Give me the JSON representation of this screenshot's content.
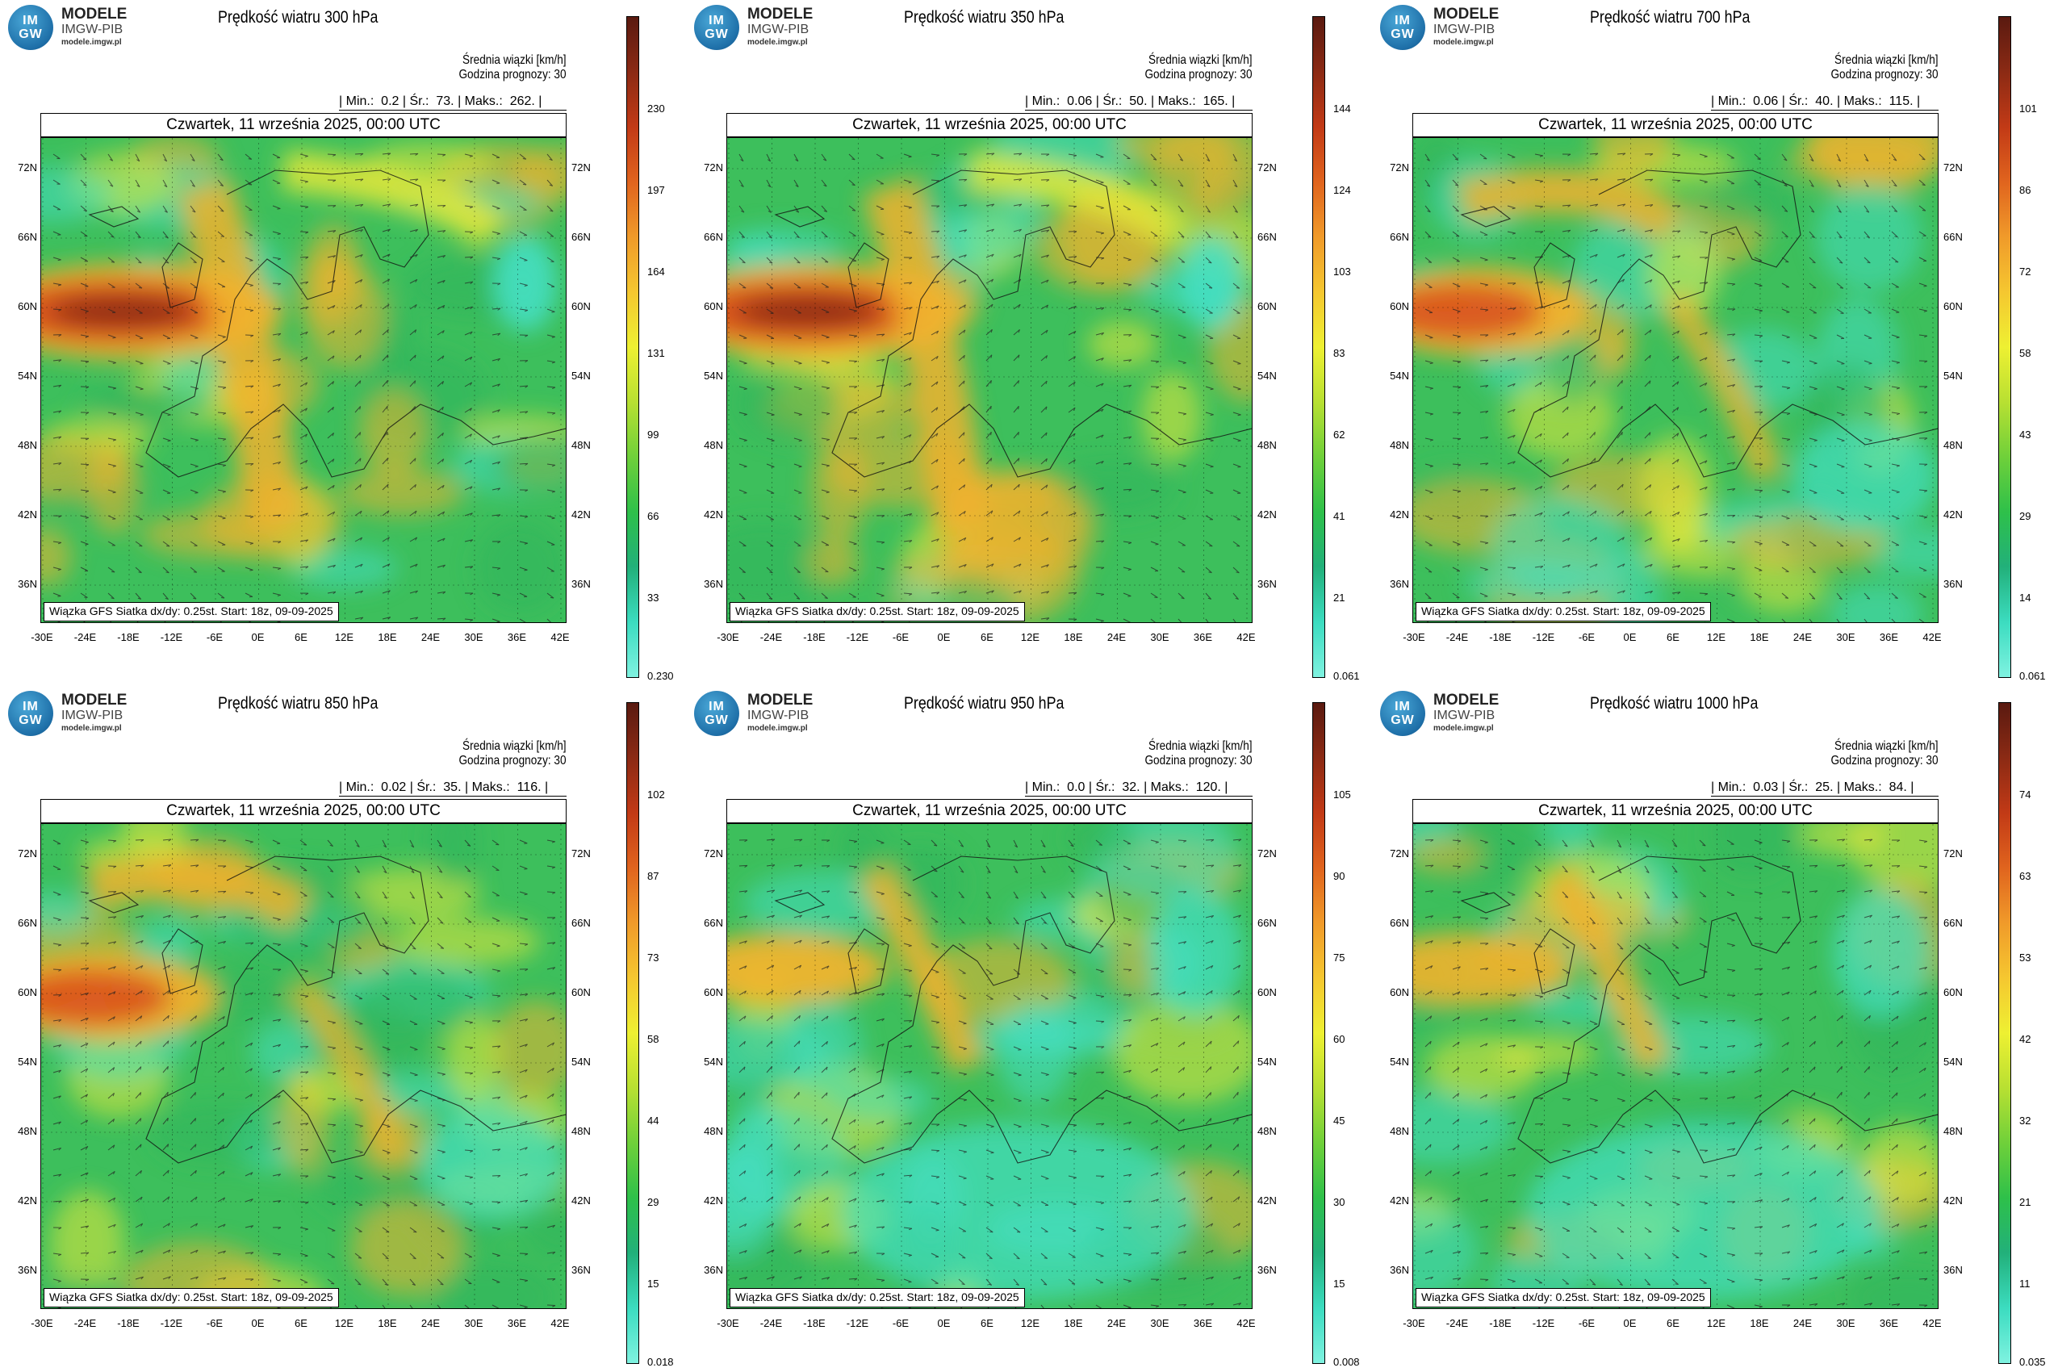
{
  "header": {
    "logo_mark": [
      "IM",
      "GW"
    ],
    "logo_title": "MODELE",
    "logo_sub": "IMGW-PIB",
    "logo_url": "modele.imgw.pl"
  },
  "common": {
    "units_label": "Średnia wiązki [km/h]",
    "forecast_hour": "Godzina prognozy: 30",
    "min_label": "Min.:",
    "avg_label": "Śr.:",
    "max_label": "Maks.:",
    "date": "Czwartek, 11 września 2025, 00:00 UTC",
    "source": "Wiązka GFS Siatka dx/dy: 0.25st. Start: 18z, 09-09-2025",
    "lat_ticks": [
      "72N",
      "66N",
      "60N",
      "54N",
      "48N",
      "42N",
      "36N"
    ],
    "lon_ticks": [
      "-30E",
      "-24E",
      "-18E",
      "-12E",
      "-6E",
      "0E",
      "6E",
      "12E",
      "18E",
      "24E",
      "30E",
      "36E",
      "42E"
    ]
  },
  "panels": [
    {
      "title": "Prędkość wiatru 300 hPa",
      "min": "0.2",
      "avg": "73.",
      "max": "262.",
      "colorbar_ticks": [
        "230",
        "197",
        "164",
        "131",
        "99",
        "66",
        "33"
      ],
      "colorbar_min": "0.230",
      "intensity": "high"
    },
    {
      "title": "Prędkość wiatru 350 hPa",
      "min": "0.06",
      "avg": "50.",
      "max": "165.",
      "colorbar_ticks": [
        "144",
        "124",
        "103",
        "83",
        "62",
        "41",
        "21"
      ],
      "colorbar_min": "0.061",
      "intensity": "high"
    },
    {
      "title": "Prędkość wiatru 700 hPa",
      "min": "0.06",
      "avg": "40.",
      "max": "115.",
      "colorbar_ticks": [
        "101",
        "86",
        "72",
        "58",
        "43",
        "29",
        "14"
      ],
      "colorbar_min": "0.061",
      "intensity": "mid"
    },
    {
      "title": "Prędkość wiatru 850 hPa",
      "min": "0.02",
      "avg": "35.",
      "max": "116.",
      "colorbar_ticks": [
        "102",
        "87",
        "73",
        "58",
        "44",
        "29",
        "15"
      ],
      "colorbar_min": "0.018",
      "intensity": "mid"
    },
    {
      "title": "Prędkość wiatru 950 hPa",
      "min": "0.0",
      "avg": "32.",
      "max": "120.",
      "colorbar_ticks": [
        "105",
        "90",
        "75",
        "60",
        "45",
        "30",
        "15"
      ],
      "colorbar_min": "0.008",
      "intensity": "low"
    },
    {
      "title": "Prędkość wiatru 1000 hPa",
      "min": "0.03",
      "avg": "25.",
      "max": "84.",
      "colorbar_ticks": [
        "74",
        "63",
        "53",
        "42",
        "32",
        "21",
        "11"
      ],
      "colorbar_min": "0.035",
      "intensity": "low"
    }
  ],
  "colors": {
    "colorbar": [
      "#5a1a10",
      "#8b2a14",
      "#c23a16",
      "#e0641e",
      "#f09a2a",
      "#f5c730",
      "#eef032",
      "#b8e032",
      "#6fd03a",
      "#2ec04a",
      "#22b07a",
      "#3cdcc0",
      "#7ff2e0"
    ],
    "jet": "#d9531e",
    "warm": "#f1b22e",
    "yellow": "#e5e73a",
    "green": "#2fb55b",
    "cyan": "#45dfc3",
    "background": "#3dbf5c"
  }
}
